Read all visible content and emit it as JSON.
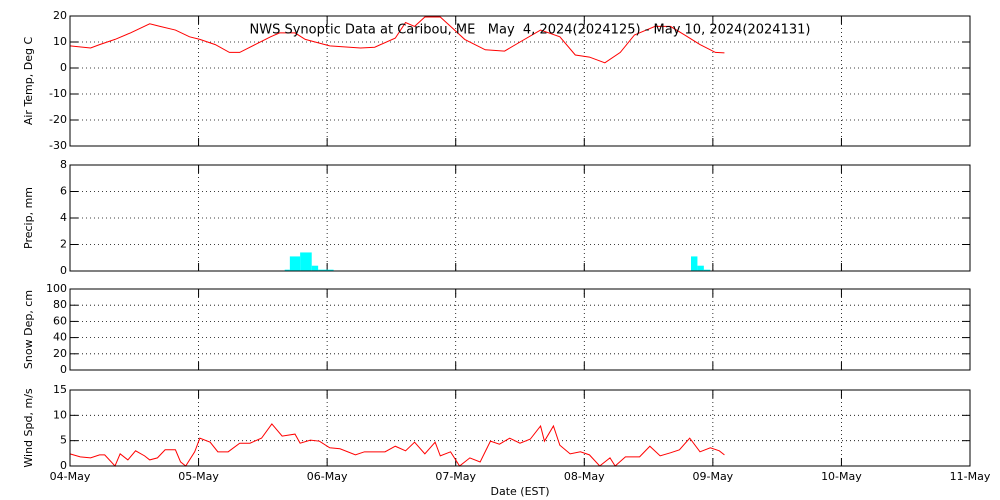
{
  "chart_data": [
    {
      "type": "line",
      "title": "NWS Synoptic Data at Caribou, ME   May  4, 2024(2024125) - May 10, 2024(2024131)",
      "ylabel": "Air Temp, Deg C",
      "color": "#ff0000",
      "grid": true,
      "ylim": [
        -30,
        20
      ],
      "yticks": [
        -30,
        -20,
        -10,
        0,
        10,
        20
      ],
      "x": [
        0,
        0.16,
        0.23,
        0.35,
        0.47,
        0.62,
        0.7,
        0.82,
        0.93,
        1.01,
        1.13,
        1.24,
        1.32,
        1.44,
        1.56,
        1.63,
        1.75,
        1.83,
        2.02,
        2.26,
        2.37,
        2.53,
        2.61,
        2.68,
        2.76,
        2.88,
        2.96,
        3.07,
        3.23,
        3.38,
        3.5,
        3.66,
        3.81,
        3.93,
        4.04,
        4.16,
        4.28,
        4.39,
        4.55,
        4.67,
        4.78,
        4.9,
        5.02,
        5.09
      ],
      "values": [
        8.5,
        7.7,
        9,
        11,
        13.5,
        17,
        16,
        14.6,
        12,
        11,
        9,
        6,
        6,
        9,
        12,
        13.5,
        13.5,
        11,
        8.5,
        7.7,
        8,
        11.5,
        17.5,
        16,
        19.6,
        19.6,
        16,
        11,
        7,
        6.5,
        10,
        14.6,
        12,
        5,
        4.2,
        2,
        6,
        12.7,
        16,
        16,
        12.7,
        9,
        6,
        5.8
      ]
    },
    {
      "type": "histogram",
      "ylabel": "Precip, mm",
      "color": "#00ffff",
      "grid": true,
      "ylim": [
        0,
        8
      ],
      "yticks": [
        0,
        2,
        4,
        6,
        8
      ],
      "bins": [
        1.67,
        1.71,
        1.79,
        1.88,
        1.93,
        2.05,
        4.83,
        4.88,
        4.93,
        4.98
      ],
      "values": [
        0.1,
        1.1,
        1.4,
        0.4,
        0.1,
        0,
        1.1,
        0.4,
        0.1
      ]
    },
    {
      "type": "line",
      "ylabel": "Snow Dep, cm",
      "color": "#ff0000",
      "grid": true,
      "ylim": [
        0,
        100
      ],
      "yticks": [
        0,
        20,
        40,
        60,
        80,
        100
      ]
    },
    {
      "type": "line",
      "ylabel": "Wind Spd, m/s",
      "xlabel": "Date (EST)",
      "color": "#ff0000",
      "grid": true,
      "ylim": [
        0,
        15
      ],
      "yticks": [
        0,
        5,
        10,
        15
      ],
      "xlim": [
        0,
        7
      ],
      "xticks": [
        {
          "value": 0,
          "label": "04-May"
        },
        {
          "value": 1,
          "label": "05-May"
        },
        {
          "value": 2,
          "label": "06-May"
        },
        {
          "value": 3,
          "label": "07-May"
        },
        {
          "value": 4,
          "label": "08-May"
        },
        {
          "value": 5,
          "label": "09-May"
        },
        {
          "value": 6,
          "label": "10-May"
        },
        {
          "value": 7,
          "label": "11-May"
        }
      ],
      "x": [
        0,
        0.08,
        0.16,
        0.23,
        0.27,
        0.35,
        0.39,
        0.45,
        0.51,
        0.58,
        0.62,
        0.68,
        0.74,
        0.82,
        0.86,
        0.9,
        0.97,
        1.01,
        1.09,
        1.15,
        1.23,
        1.32,
        1.4,
        1.49,
        1.57,
        1.65,
        1.75,
        1.79,
        1.87,
        1.94,
        2.02,
        2.1,
        2.22,
        2.29,
        2.45,
        2.53,
        2.61,
        2.68,
        2.76,
        2.84,
        2.88,
        2.96,
        3.03,
        3.11,
        3.19,
        3.27,
        3.34,
        3.42,
        3.5,
        3.58,
        3.66,
        3.69,
        3.76,
        3.81,
        3.89,
        3.97,
        4.04,
        4.12,
        4.2,
        4.24,
        4.32,
        4.43,
        4.51,
        4.59,
        4.67,
        4.74,
        4.82,
        4.9,
        4.98,
        5.05,
        5.09
      ],
      "values": [
        2.4,
        1.8,
        1.6,
        2.2,
        2.2,
        0,
        2.4,
        1.2,
        3,
        2,
        1.2,
        1.6,
        3.2,
        3.2,
        0.8,
        0,
        2.8,
        5.5,
        4.7,
        2.8,
        2.8,
        4.5,
        4.5,
        5.5,
        8.3,
        5.9,
        6.3,
        4.5,
        5.1,
        4.9,
        3.6,
        3.4,
        2.2,
        2.8,
        2.8,
        3.9,
        3,
        4.7,
        2.4,
        4.7,
        2,
        2.8,
        0,
        1.6,
        0.8,
        4.9,
        4.3,
        5.5,
        4.5,
        5.3,
        7.9,
        4.9,
        7.9,
        4.1,
        2.4,
        2.8,
        2.2,
        0,
        1.6,
        0,
        1.8,
        1.8,
        3.9,
        2,
        2.6,
        3.2,
        5.5,
        2.8,
        3.6,
        3,
        2.2
      ]
    }
  ]
}
